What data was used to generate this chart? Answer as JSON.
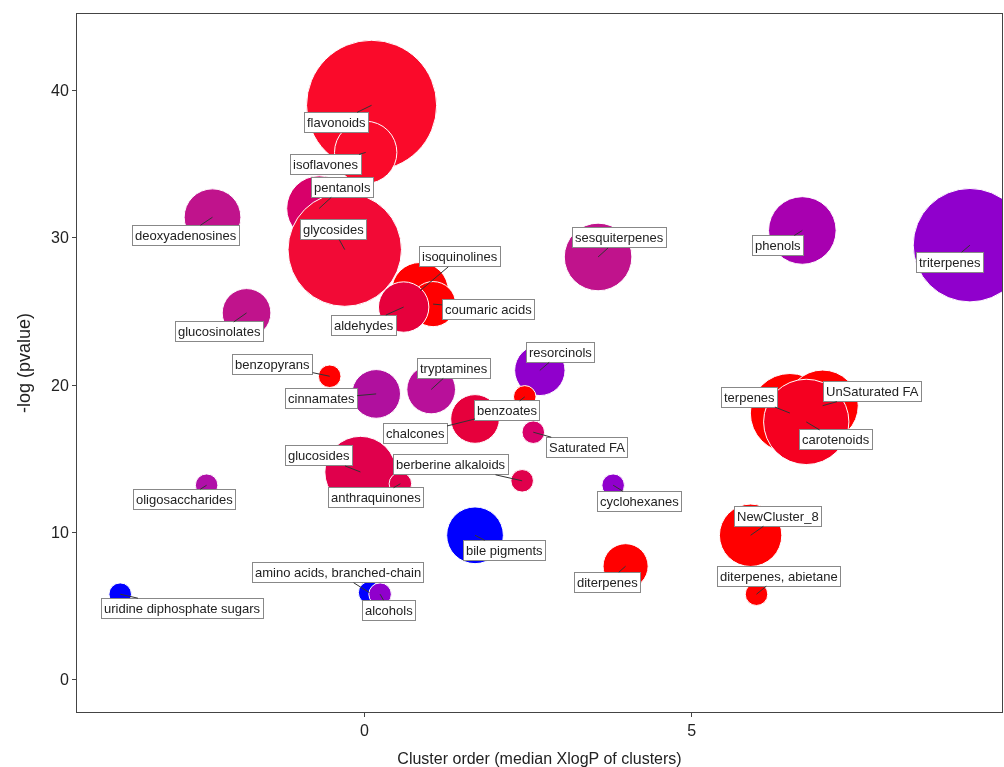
{
  "chart_data": {
    "type": "bubble",
    "xlabel": "Cluster order (median XlogP of clusters)",
    "ylabel": "-log (pvalue)",
    "xlim": [
      -4.39,
      9.74
    ],
    "xticks": [
      0,
      5
    ],
    "ylim": [
      -2.2,
      45.2
    ],
    "yticks": [
      0,
      10,
      20,
      30,
      40
    ],
    "x": [
      0.11,
      0.02,
      -0.69,
      -0.3,
      -2.32,
      3.57,
      6.69,
      9.25,
      0.85,
      1.05,
      0.6,
      -1.8,
      -0.53,
      0.18,
      1.02,
      2.68,
      2.45,
      1.69,
      2.58,
      6.5,
      7.0,
      6.75,
      -0.06,
      0.55,
      2.41,
      -2.41,
      3.8,
      1.69,
      3.99,
      5.9,
      5.99,
      -3.73,
      0.08,
      0.24
    ],
    "values": [
      39.0,
      35.8,
      32.0,
      29.2,
      31.4,
      28.7,
      30.5,
      29.5,
      26.4,
      25.5,
      25.3,
      24.9,
      20.6,
      19.4,
      19.7,
      21.0,
      19.2,
      17.7,
      16.8,
      18.1,
      18.6,
      17.5,
      14.1,
      13.3,
      13.5,
      13.2,
      13.2,
      9.8,
      7.7,
      9.8,
      5.8,
      5.8,
      5.9,
      5.8
    ],
    "sizes": [
      1,
      0.23,
      0.25,
      0.76,
      0.19,
      0.27,
      0.27,
      0.76,
      0.19,
      0.12,
      0.15,
      0.14,
      0.03,
      0.14,
      0.14,
      0.15,
      0.03,
      0.14,
      0.03,
      0.37,
      0.3,
      0.43,
      0.3,
      0.03,
      0.03,
      0.03,
      0.03,
      0.19,
      0.12,
      0.23,
      0.03,
      0.03,
      0.03,
      0.03
    ],
    "colors": [
      "#fa0a2a",
      "#fa0a2a",
      "#d8006a",
      "#f20a36",
      "#c0138c",
      "#c0138c",
      "#a800b0",
      "#9000cc",
      "#ff0000",
      "#ff0000",
      "#e6003c",
      "#c0138c",
      "#ff0000",
      "#b0109e",
      "#b8109a",
      "#9000cc",
      "#ff0000",
      "#e6003c",
      "#d8006a",
      "#ff0000",
      "#ff0000",
      "#f50020",
      "#e0004c",
      "#e0004c",
      "#e0004c",
      "#b010a8",
      "#9000cc",
      "#0000ff",
      "#ff0000",
      "#ff0000",
      "#ff0000",
      "#0000ff",
      "#0000ff",
      "#9000cc"
    ],
    "annotations": [
      {
        "text": "flavonoids",
        "x": 0.11,
        "y": 39.0
      },
      {
        "text": "isoflavones",
        "x": 0.02,
        "y": 35.8
      },
      {
        "text": "pentanols",
        "x": -0.69,
        "y": 32.0
      },
      {
        "text": "glycosides",
        "x": -0.3,
        "y": 29.2
      },
      {
        "text": "deoxyadenosines",
        "x": -2.32,
        "y": 31.4
      },
      {
        "text": "sesquiterpenes",
        "x": 3.57,
        "y": 28.7
      },
      {
        "text": "phenols",
        "x": 6.69,
        "y": 30.5
      },
      {
        "text": "triterpenes",
        "x": 9.25,
        "y": 29.5
      },
      {
        "text": "isoquinolines",
        "x": 0.85,
        "y": 26.4
      },
      {
        "text": "coumaric acids",
        "x": 1.05,
        "y": 25.5
      },
      {
        "text": "aldehydes",
        "x": 0.6,
        "y": 25.3
      },
      {
        "text": "glucosinolates",
        "x": -1.8,
        "y": 24.9
      },
      {
        "text": "benzopyrans",
        "x": -0.53,
        "y": 20.6
      },
      {
        "text": "cinnamates",
        "x": 0.18,
        "y": 19.4
      },
      {
        "text": "tryptamines",
        "x": 1.02,
        "y": 19.7
      },
      {
        "text": "resorcinols",
        "x": 2.68,
        "y": 21.0
      },
      {
        "text": "benzoates",
        "x": 2.45,
        "y": 19.2
      },
      {
        "text": "chalcones",
        "x": 1.69,
        "y": 17.7
      },
      {
        "text": "Saturated FA",
        "x": 2.58,
        "y": 16.8
      },
      {
        "text": "terpenes",
        "x": 6.5,
        "y": 18.1
      },
      {
        "text": "UnSaturated FA",
        "x": 7.0,
        "y": 18.6
      },
      {
        "text": "carotenoids",
        "x": 6.75,
        "y": 17.5
      },
      {
        "text": "glucosides",
        "x": -0.06,
        "y": 14.1
      },
      {
        "text": "anthraquinones",
        "x": 0.55,
        "y": 13.3
      },
      {
        "text": "berberine alkaloids",
        "x": 2.41,
        "y": 13.5
      },
      {
        "text": "oligosaccharides",
        "x": -2.41,
        "y": 13.2
      },
      {
        "text": "cyclohexanes",
        "x": 3.8,
        "y": 13.2
      },
      {
        "text": "bile pigments",
        "x": 1.69,
        "y": 9.8
      },
      {
        "text": "diterpenes",
        "x": 3.99,
        "y": 7.7
      },
      {
        "text": "NewCluster_8",
        "x": 5.9,
        "y": 9.8
      },
      {
        "text": "diterpenes, abietane",
        "x": 5.99,
        "y": 5.8
      },
      {
        "text": "uridine diphosphate sugars",
        "x": -3.73,
        "y": 5.8
      },
      {
        "text": "amino acids, branched-chain",
        "x": 0.08,
        "y": 5.9
      },
      {
        "text": "alcohols",
        "x": 0.24,
        "y": 5.8
      }
    ]
  }
}
